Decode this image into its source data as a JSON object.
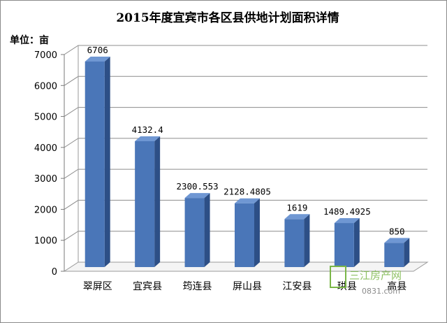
{
  "chart_data": {
    "type": "bar",
    "title": "2015年度宜宾市各区县供地计划面积详情",
    "unit_label": "单位：亩",
    "categories": [
      "翠屏区",
      "宜宾县",
      "筠连县",
      "屏山县",
      "江安县",
      "珙县",
      "高县"
    ],
    "values": [
      6706,
      4132.4,
      2300.553,
      2128.4805,
      1619,
      1489.4925,
      850
    ],
    "data_labels": [
      "6706",
      "4132.4",
      "2300.553",
      "2128.4805",
      "1619",
      "1489.4925",
      "850"
    ],
    "ylim": [
      0,
      7000
    ],
    "yticks": [
      "0",
      "1000",
      "2000",
      "3000",
      "4000",
      "5000",
      "6000",
      "7000"
    ],
    "grid": true,
    "bar_color": "#4a76b8"
  },
  "watermark": {
    "brand": "三江房产网",
    "url": "0831.com",
    "color": "#7ab648"
  }
}
